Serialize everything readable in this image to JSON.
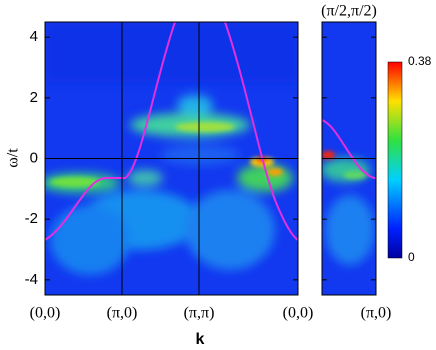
{
  "chart_data": {
    "type": "heatmap",
    "y_label": "ω/t",
    "x_label": "k",
    "ylim": [
      -4.5,
      4.5
    ],
    "yticks": [
      4,
      2,
      0,
      -2,
      -4
    ],
    "hline": 0,
    "panels": [
      {
        "categories": [
          "(0,0)",
          "(π,0)",
          "(π,π)",
          "(0,0)"
        ]
      },
      {
        "top_label": "(π/2,π/2)",
        "categories": [
          "(π,0)"
        ]
      }
    ],
    "clim": [
      0,
      0.38
    ],
    "curve_color": "#e030e0"
  }
}
